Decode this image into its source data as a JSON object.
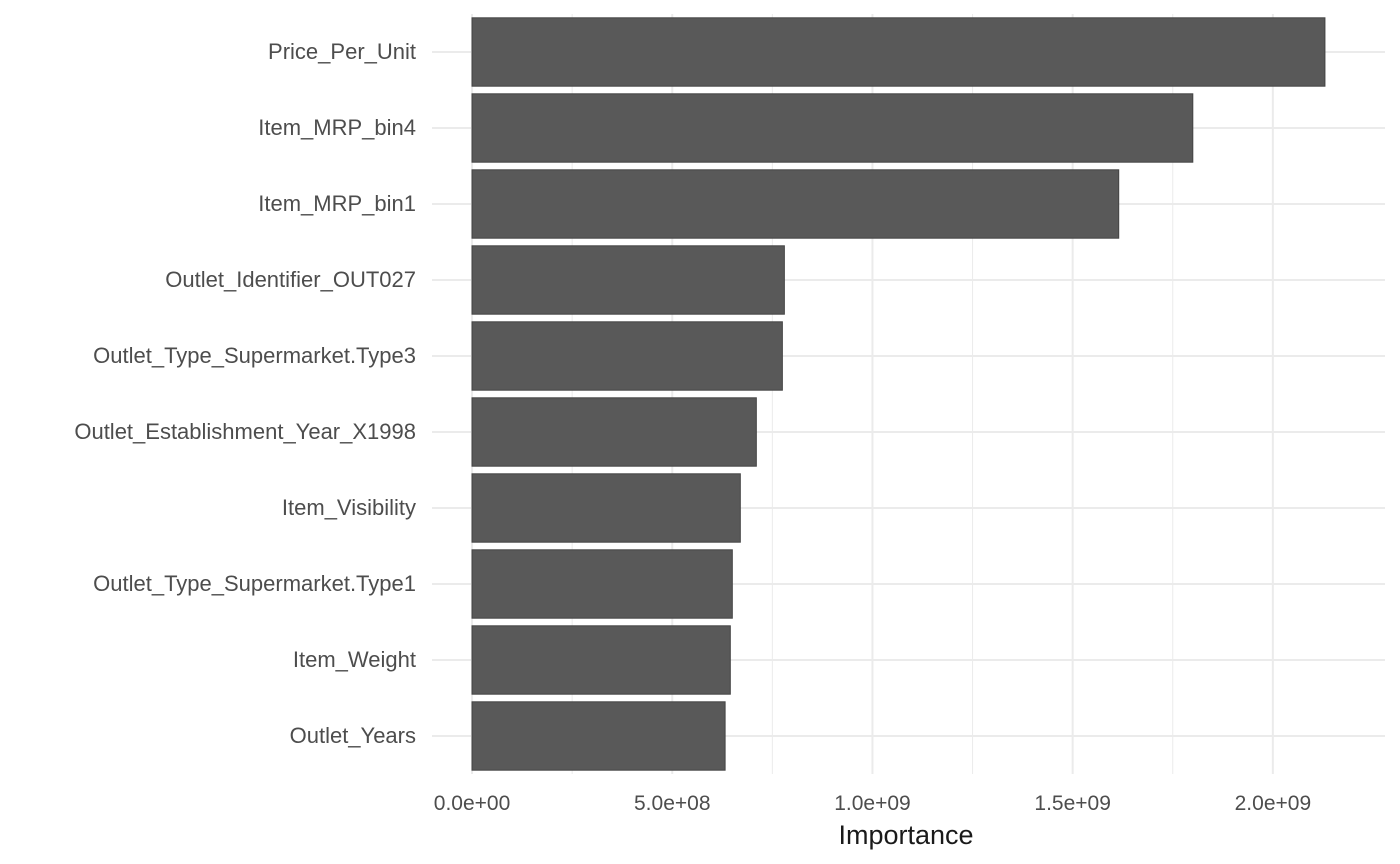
{
  "chart_data": {
    "type": "bar",
    "orientation": "horizontal",
    "categories": [
      "Price_Per_Unit",
      "Item_MRP_bin4",
      "Item_MRP_bin1",
      "Outlet_Identifier_OUT027",
      "Outlet_Type_Supermarket.Type3",
      "Outlet_Establishment_Year_X1998",
      "Item_Visibility",
      "Outlet_Type_Supermarket.Type1",
      "Item_Weight",
      "Outlet_Years"
    ],
    "values": [
      2130000000,
      1800000000,
      1615000000,
      780000000,
      775000000,
      710000000,
      670000000,
      650000000,
      645000000,
      632000000
    ],
    "xlabel": "Importance",
    "ylabel": "",
    "xlim": [
      -100000000,
      2280000000
    ],
    "xticks": [
      0,
      500000000,
      1000000000,
      1500000000,
      2000000000
    ],
    "xtick_labels": [
      "0.0e+00",
      "5.0e+08",
      "1.0e+09",
      "1.5e+09",
      "2.0e+09"
    ],
    "grid": true,
    "bar_color": "#595959"
  }
}
